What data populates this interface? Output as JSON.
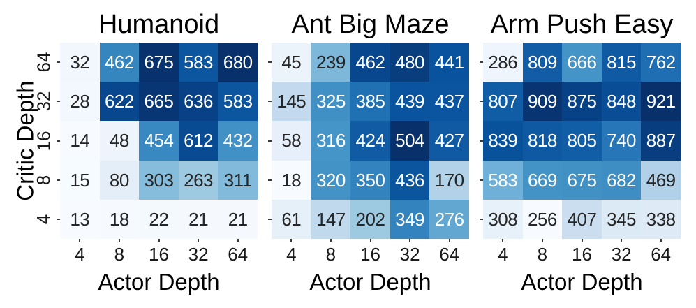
{
  "figure": {
    "ylabel": "Critic Depth",
    "xlabel": "Actor Depth",
    "background": "#ffffff",
    "colormap": "Blues",
    "colormap_stops": [
      "#f7fbff",
      "#deebf7",
      "#c6dbef",
      "#9ecae1",
      "#6baed6",
      "#4292c6",
      "#2171b5",
      "#08519c",
      "#08306b"
    ],
    "annotation_text_dark": "#262626",
    "annotation_text_light": "#ffffff",
    "tick_color": "#3a3a3a"
  },
  "chart_data": [
    {
      "type": "heatmap",
      "title": "Humanoid",
      "xlabel": "Actor Depth",
      "ylabel": "Critic Depth",
      "x_categories": [
        "4",
        "8",
        "16",
        "32",
        "64"
      ],
      "y_categories": [
        "64",
        "32",
        "16",
        "8",
        "4"
      ],
      "rows": [
        [
          32,
          462,
          675,
          583,
          680
        ],
        [
          28,
          622,
          665,
          636,
          583
        ],
        [
          14,
          48,
          454,
          612,
          432
        ],
        [
          15,
          80,
          303,
          263,
          311
        ],
        [
          13,
          18,
          22,
          21,
          21
        ]
      ],
      "vmin": 13,
      "vmax": 680,
      "show_y_tick_labels": true
    },
    {
      "type": "heatmap",
      "title": "Ant Big Maze",
      "xlabel": "Actor Depth",
      "ylabel": "Critic Depth",
      "x_categories": [
        "4",
        "8",
        "16",
        "32",
        "64"
      ],
      "y_categories": [
        "64",
        "32",
        "16",
        "8",
        "4"
      ],
      "rows": [
        [
          45,
          239,
          462,
          480,
          441
        ],
        [
          145,
          325,
          385,
          439,
          437
        ],
        [
          58,
          316,
          424,
          504,
          427
        ],
        [
          18,
          320,
          350,
          436,
          170
        ],
        [
          61,
          147,
          202,
          349,
          276
        ]
      ],
      "vmin": 18,
      "vmax": 504,
      "show_y_tick_labels": false
    },
    {
      "type": "heatmap",
      "title": "Arm Push Easy",
      "xlabel": "Actor Depth",
      "ylabel": "Critic Depth",
      "x_categories": [
        "4",
        "8",
        "16",
        "32",
        "64"
      ],
      "y_categories": [
        "64",
        "32",
        "16",
        "8",
        "4"
      ],
      "rows": [
        [
          286,
          809,
          666,
          815,
          762
        ],
        [
          807,
          909,
          875,
          848,
          921
        ],
        [
          839,
          818,
          805,
          740,
          887
        ],
        [
          583,
          669,
          675,
          682,
          469
        ],
        [
          308,
          256,
          407,
          345,
          338
        ]
      ],
      "vmin": 256,
      "vmax": 921,
      "show_y_tick_labels": false
    }
  ]
}
